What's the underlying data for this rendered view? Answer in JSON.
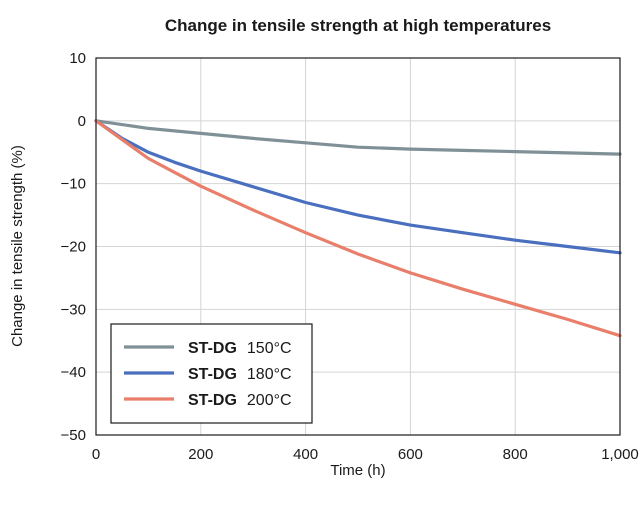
{
  "chart_data": {
    "type": "line",
    "title": "Change in tensile strength at high temperatures",
    "xlabel": "Time (h)",
    "ylabel": "Change in tensile strength (%)",
    "xlim": [
      0,
      1000
    ],
    "ylim": [
      -50,
      10
    ],
    "x_ticks": [
      0,
      200,
      400,
      600,
      800,
      1000
    ],
    "x_tick_labels": [
      "0",
      "200",
      "400",
      "600",
      "800",
      "1,000"
    ],
    "y_ticks": [
      10,
      0,
      -10,
      -20,
      -30,
      -40,
      -50
    ],
    "y_tick_labels": [
      "10",
      "0",
      "−10",
      "−20",
      "−30",
      "−40",
      "−50"
    ],
    "grid": true,
    "legend_position": "bottom-left",
    "series": [
      {
        "name": "ST-DG",
        "temp": "150°C",
        "color": "#7f9196",
        "points": [
          [
            0,
            0
          ],
          [
            100,
            -1.2
          ],
          [
            200,
            -2.0
          ],
          [
            300,
            -2.8
          ],
          [
            400,
            -3.5
          ],
          [
            500,
            -4.2
          ],
          [
            600,
            -4.5
          ],
          [
            700,
            -4.7
          ],
          [
            800,
            -4.9
          ],
          [
            900,
            -5.1
          ],
          [
            1000,
            -5.3
          ]
        ]
      },
      {
        "name": "ST-DG",
        "temp": "180°C",
        "color": "#4a6fbf",
        "points": [
          [
            0,
            0
          ],
          [
            50,
            -2.8
          ],
          [
            100,
            -5.0
          ],
          [
            150,
            -6.6
          ],
          [
            200,
            -8.0
          ],
          [
            300,
            -10.5
          ],
          [
            400,
            -13.0
          ],
          [
            500,
            -15.0
          ],
          [
            600,
            -16.6
          ],
          [
            700,
            -17.8
          ],
          [
            800,
            -19.0
          ],
          [
            900,
            -20.0
          ],
          [
            1000,
            -21.0
          ]
        ]
      },
      {
        "name": "ST-DG",
        "temp": "200°C",
        "color": "#e97e6a",
        "points": [
          [
            0,
            0
          ],
          [
            50,
            -3.0
          ],
          [
            100,
            -6.0
          ],
          [
            150,
            -8.2
          ],
          [
            200,
            -10.4
          ],
          [
            300,
            -14.2
          ],
          [
            400,
            -17.8
          ],
          [
            500,
            -21.2
          ],
          [
            600,
            -24.2
          ],
          [
            700,
            -26.8
          ],
          [
            800,
            -29.2
          ],
          [
            900,
            -31.6
          ],
          [
            1000,
            -34.2
          ]
        ]
      }
    ]
  }
}
